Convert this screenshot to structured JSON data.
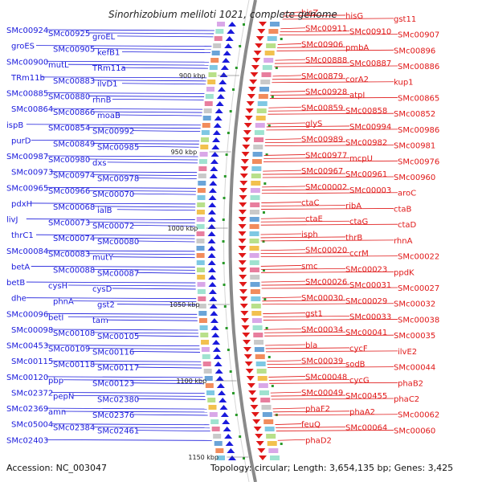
{
  "title": "Sinorhizobium meliloti 1021, complete genome",
  "accession": "Accession: NC_003047",
  "topology": "Topology: circular; Length: 3,654,135 bp; Genes: 3,425",
  "colors": {
    "left": "#1a1adc",
    "right": "#e01818",
    "backbone": "#8a8a8a",
    "marker": "#2a9a2a"
  },
  "kbp_labels": [
    "900 kbp",
    "950 kbp",
    "1000 kbp",
    "1050 kbp",
    "1100 kbp",
    "1150 kbp"
  ],
  "left_labels": [
    "SMc00924",
    "SMc00925",
    "groEL",
    "groES",
    "SMc00905",
    "kefB1",
    "SMc00900",
    "mutL",
    "TRm11a",
    "TRm11b",
    "SMc00883",
    "ilvD1",
    "SMc00885",
    "SMc00880",
    "rhnB",
    "SMc00864",
    "SMc00866",
    "moaB",
    "ispB",
    "SMc00854",
    "SMc00992",
    "purD",
    "SMc00849",
    "SMc00985",
    "SMc00987",
    "SMc00980",
    "dxs",
    "SMc00973",
    "SMc00974",
    "SMc00978",
    "SMc00965",
    "SMc00966",
    "SMc00070",
    "pdxH",
    "SMc00068",
    "ialB",
    "livJ",
    "SMc00073",
    "SMc00072",
    "thrC1",
    "SMc00074",
    "SMc00080",
    "SMc00084",
    "SMc00083",
    "mutY",
    "betA",
    "SMc00088",
    "SMc00087",
    "betB",
    "cysH",
    "cysD",
    "dhe",
    "phnA",
    "gst2",
    "SMc00096",
    "betI",
    "tam",
    "SMc00098",
    "SMc00108",
    "SMc00105",
    "SMc00453",
    "SMc00109",
    "SMc00116",
    "SMc00115",
    "SMc00118",
    "SMc00117",
    "SMc00120",
    "pbp",
    "SMc00123",
    "SMc02372",
    "pepN",
    "SMc02380",
    "SMc02369",
    "amn",
    "SMc02376",
    "SMc05004",
    "SMc02384",
    "SMc02461",
    "SMc02403"
  ],
  "right_labels": [
    "hisZ",
    "hisG",
    "gst11",
    "SMc00911",
    "SMc00910",
    "SMc00907",
    "SMc00906",
    "pmbA",
    "SMc00896",
    "SMc00888",
    "SMc00887",
    "SMc00886",
    "SMc00879",
    "corA2",
    "kup1",
    "SMc00928",
    "atpI",
    "SMc00865",
    "SMc00859",
    "SMc00858",
    "SMc00852",
    "glyS",
    "SMc00994",
    "SMc00986",
    "SMc00989",
    "SMc00982",
    "SMc00981",
    "SMc00977",
    "mcpU",
    "SMc00976",
    "SMc00967",
    "SMc00961",
    "SMc00960",
    "SMc00002",
    "SMc00003",
    "aroC",
    "ctaC",
    "ribA",
    "ctaB",
    "ctaE",
    "ctaG",
    "ctaD",
    "isph",
    "thrB",
    "rhnA",
    "SMc00020",
    "ccrM",
    "SMc00022",
    "smc",
    "SMc00023",
    "ppdK",
    "SMc00026",
    "SMc00031",
    "SMc00027",
    "SMc00030",
    "SMc00029",
    "SMc00032",
    "gst1",
    "SMc00033",
    "SMc00038",
    "SMc00034",
    "SMc00041",
    "SMc00035",
    "bla",
    "cycF",
    "ilvE2",
    "SMc00039",
    "sodB",
    "SMc00044",
    "SMc00048",
    "cycG",
    "phaB2",
    "SMc00049",
    "SMc00455",
    "phaC2",
    "phaF2",
    "phaA2",
    "SMc00062",
    "feuQ",
    "SMc00064",
    "SMc00060",
    "phaD2"
  ]
}
